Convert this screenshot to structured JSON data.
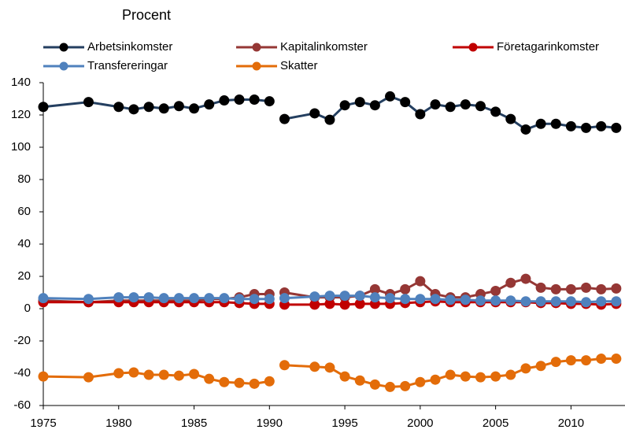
{
  "chart_data": {
    "type": "line",
    "ylabel": "Procent",
    "x": [
      1975,
      1978,
      1980,
      1981,
      1982,
      1983,
      1984,
      1985,
      1986,
      1987,
      1988,
      1989,
      1990,
      null,
      1991,
      1993,
      1994,
      1995,
      1996,
      1997,
      1998,
      1999,
      2000,
      2001,
      2002,
      2003,
      2004,
      2005,
      2006,
      2007,
      2008,
      2009,
      2010,
      2011,
      2012,
      2013
    ],
    "xlim": [
      1975,
      2014
    ],
    "xticks": [
      1975,
      1980,
      1985,
      1990,
      1995,
      2000,
      2005,
      2010
    ],
    "ylim": [
      -60,
      140
    ],
    "yticks": [
      -60,
      -40,
      -20,
      0,
      20,
      40,
      60,
      80,
      100,
      120,
      140
    ],
    "series": [
      {
        "name": "Arbetsinkomster",
        "color": "#243f60",
        "marker_color": "#000000",
        "values": [
          125,
          128,
          125,
          123.5,
          125,
          124,
          125.5,
          124,
          126.5,
          129,
          129.5,
          129.5,
          128.5,
          null,
          117.5,
          121,
          117,
          126,
          128,
          126,
          131.5,
          128,
          120.5,
          126.5,
          125,
          126.5,
          125.5,
          122,
          117.5,
          111,
          114.5,
          114.5,
          113,
          112,
          113,
          112
        ]
      },
      {
        "name": "Kapitalinkomster",
        "color": "#953735",
        "marker_color": "#953735",
        "values": [
          5,
          4,
          5,
          5,
          5,
          5,
          5,
          5,
          6,
          6,
          7,
          9,
          9,
          null,
          10,
          7,
          7,
          7,
          8,
          12,
          9,
          12,
          17,
          9,
          7,
          7,
          9,
          11,
          16,
          18.5,
          13,
          12,
          12,
          13,
          12,
          12.5
        ]
      },
      {
        "name": "Företagarinkomster",
        "color": "#c00000",
        "marker_color": "#c00000",
        "values": [
          4,
          4,
          4,
          4,
          4,
          4,
          4,
          4,
          4,
          4,
          3.5,
          3,
          3,
          null,
          2.5,
          2.5,
          3,
          2.5,
          3,
          3,
          3,
          3.5,
          4,
          4.5,
          4,
          4,
          4,
          4,
          4,
          4,
          3.5,
          3.5,
          3,
          3,
          2.5,
          3
        ]
      },
      {
        "name": "Transfereringar",
        "color": "#4f81bd",
        "marker_color": "#4f81bd",
        "values": [
          6.5,
          6,
          7,
          7,
          7,
          6.5,
          6.5,
          6.5,
          6.5,
          6.5,
          6,
          6,
          6,
          null,
          6.5,
          7.5,
          8,
          8,
          8,
          7,
          6.5,
          6,
          6,
          6,
          5.5,
          5.5,
          5,
          5,
          5,
          4.5,
          4.5,
          4.5,
          4.5,
          4,
          4.5,
          4.5
        ]
      },
      {
        "name": "Skatter",
        "color": "#e36c09",
        "marker_color": "#e36c09",
        "values": [
          -42,
          -42.5,
          -40,
          -39.5,
          -41,
          -41,
          -41.5,
          -40.5,
          -43.5,
          -45.5,
          -46,
          -46.5,
          -45,
          null,
          -35,
          -36,
          -36.5,
          -42,
          -44.5,
          -47,
          -48.5,
          -48,
          -45.5,
          -44,
          -41,
          -42,
          -42.5,
          -42,
          -41,
          -37,
          -35.5,
          -33,
          -32,
          -32,
          -31,
          -31
        ]
      }
    ]
  }
}
